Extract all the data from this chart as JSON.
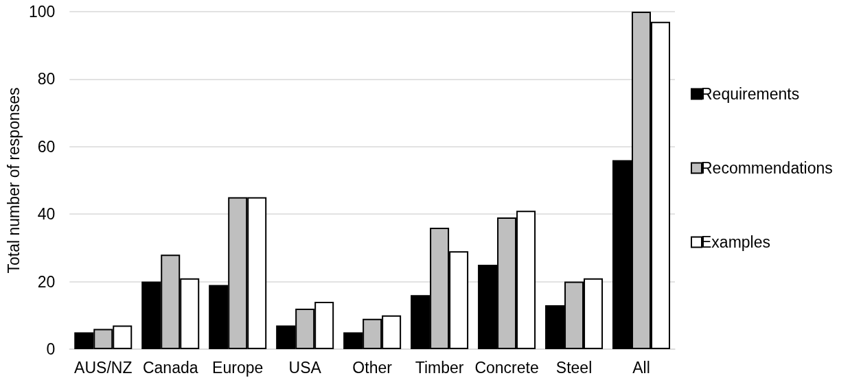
{
  "chart_data": {
    "type": "bar",
    "ylabel": "Total number of responses",
    "categories": [
      "AUS/NZ",
      "Canada",
      "Europe",
      "USA",
      "Other",
      "Timber",
      "Concrete",
      "Steel",
      "All"
    ],
    "series": [
      {
        "name": "Requirements",
        "color": "#000000",
        "values": [
          5,
          20,
          19,
          7,
          5,
          16,
          25,
          13,
          56
        ]
      },
      {
        "name": "Recommendations",
        "color": "#bfbfbf",
        "values": [
          6,
          28,
          45,
          12,
          9,
          36,
          39,
          20,
          100
        ]
      },
      {
        "name": "Examples",
        "color": "#ffffff",
        "values": [
          7,
          21,
          45,
          14,
          10,
          29,
          41,
          21,
          97
        ]
      }
    ],
    "ylim": [
      0,
      100
    ],
    "yticks": [
      0,
      20,
      40,
      60,
      80,
      100
    ],
    "grid": "y",
    "legend": "right"
  }
}
